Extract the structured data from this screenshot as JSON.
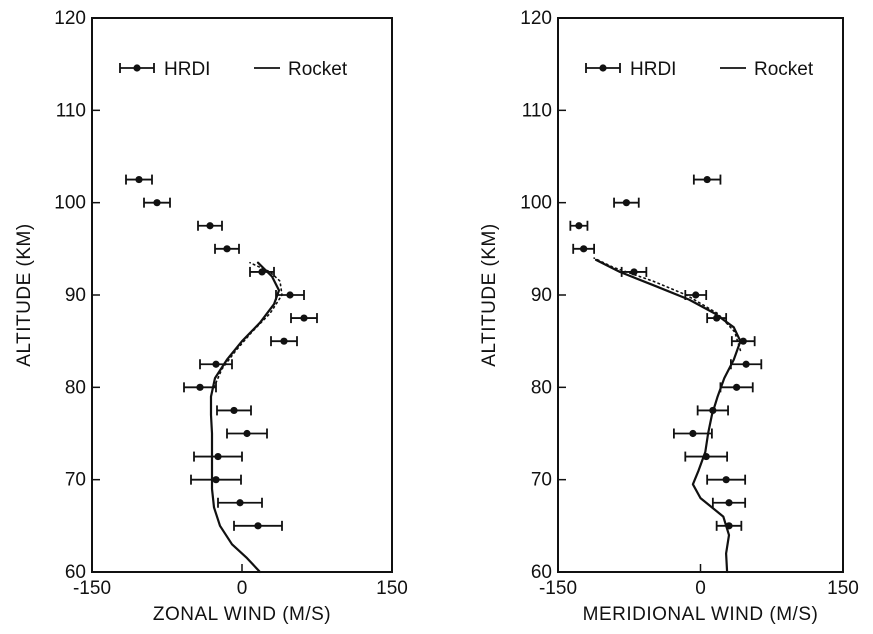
{
  "chart_data": [
    {
      "type": "scatter",
      "title": "",
      "xlabel": "ZONAL WIND (M/S)",
      "ylabel": "ALTITUDE (KM)",
      "xlim": [
        -150,
        150
      ],
      "ylim": [
        60,
        120
      ],
      "x_ticks": [
        -150,
        0,
        150
      ],
      "x_tick_labels": [
        "-150",
        "0",
        "150"
      ],
      "y_ticks": [
        60,
        70,
        80,
        90,
        100,
        110,
        120
      ],
      "y_tick_labels": [
        "60",
        "70",
        "80",
        "90",
        "100",
        "110",
        "120"
      ],
      "legend": {
        "placement": "top",
        "entries": [
          "HRDI",
          "Rocket"
        ]
      },
      "series": [
        {
          "name": "HRDI",
          "kind": "points-with-horizontal-error-bars",
          "points": [
            {
              "y": 102.5,
              "x": -103,
              "err": 13
            },
            {
              "y": 100,
              "x": -85,
              "err": 13
            },
            {
              "y": 97.5,
              "x": -32,
              "err": 12
            },
            {
              "y": 95,
              "x": -15,
              "err": 12
            },
            {
              "y": 92.5,
              "x": 20,
              "err": 12
            },
            {
              "y": 90,
              "x": 48,
              "err": 14
            },
            {
              "y": 87.5,
              "x": 62,
              "err": 13
            },
            {
              "y": 85,
              "x": 42,
              "err": 13
            },
            {
              "y": 82.5,
              "x": -26,
              "err": 16
            },
            {
              "y": 80,
              "x": -42,
              "err": 16
            },
            {
              "y": 77.5,
              "x": -8,
              "err": 17
            },
            {
              "y": 75,
              "x": 5,
              "err": 20
            },
            {
              "y": 72.5,
              "x": -24,
              "err": 24
            },
            {
              "y": 70,
              "x": -26,
              "err": 25
            },
            {
              "y": 67.5,
              "x": -2,
              "err": 22
            },
            {
              "y": 65,
              "x": 16,
              "err": 24
            }
          ]
        },
        {
          "name": "Rocket",
          "kind": "line",
          "points": [
            {
              "y": 60,
              "x": 18
            },
            {
              "y": 61.5,
              "x": 5
            },
            {
              "y": 63,
              "x": -10
            },
            {
              "y": 65,
              "x": -22
            },
            {
              "y": 67,
              "x": -28
            },
            {
              "y": 69,
              "x": -30
            },
            {
              "y": 71,
              "x": -30
            },
            {
              "y": 73,
              "x": -30
            },
            {
              "y": 75,
              "x": -30
            },
            {
              "y": 77,
              "x": -31
            },
            {
              "y": 79,
              "x": -31
            },
            {
              "y": 81,
              "x": -27
            },
            {
              "y": 83,
              "x": -15
            },
            {
              "y": 85,
              "x": 0
            },
            {
              "y": 87,
              "x": 18
            },
            {
              "y": 89,
              "x": 32
            },
            {
              "y": 90.5,
              "x": 37
            },
            {
              "y": 92,
              "x": 30
            },
            {
              "y": 93.5,
              "x": 16
            }
          ]
        },
        {
          "name": "",
          "kind": "dotted-line",
          "points": [
            {
              "y": 80,
              "x": -28
            },
            {
              "y": 82,
              "x": -20
            },
            {
              "y": 84,
              "x": -6
            },
            {
              "y": 86,
              "x": 10
            },
            {
              "y": 88,
              "x": 28
            },
            {
              "y": 90,
              "x": 40
            },
            {
              "y": 91.5,
              "x": 38
            },
            {
              "y": 92.5,
              "x": 28
            },
            {
              "y": 93.5,
              "x": 8
            }
          ]
        }
      ]
    },
    {
      "type": "scatter",
      "title": "",
      "xlabel": "MERIDIONAL WIND (M/S)",
      "ylabel": "ALTITUDE (KM)",
      "xlim": [
        -150,
        150
      ],
      "ylim": [
        60,
        120
      ],
      "x_ticks": [
        -150,
        0,
        150
      ],
      "x_tick_labels": [
        "-150",
        "0",
        "150"
      ],
      "y_ticks": [
        60,
        70,
        80,
        90,
        100,
        110,
        120
      ],
      "y_tick_labels": [
        "60",
        "70",
        "80",
        "90",
        "100",
        "110",
        "120"
      ],
      "legend": {
        "placement": "top",
        "entries": [
          "HRDI",
          "Rocket"
        ]
      },
      "series": [
        {
          "name": "HRDI",
          "kind": "points-with-horizontal-error-bars",
          "points": [
            {
              "y": 102.5,
              "x": 7,
              "err": 14
            },
            {
              "y": 100,
              "x": -78,
              "err": 13
            },
            {
              "y": 97.5,
              "x": -128,
              "err": 9
            },
            {
              "y": 95,
              "x": -123,
              "err": 11
            },
            {
              "y": 92.5,
              "x": -70,
              "err": 13
            },
            {
              "y": 90,
              "x": -5,
              "err": 11
            },
            {
              "y": 87.5,
              "x": 17,
              "err": 10
            },
            {
              "y": 85,
              "x": 45,
              "err": 12
            },
            {
              "y": 82.5,
              "x": 48,
              "err": 16
            },
            {
              "y": 80,
              "x": 38,
              "err": 17
            },
            {
              "y": 77.5,
              "x": 13,
              "err": 16
            },
            {
              "y": 75,
              "x": -8,
              "err": 20
            },
            {
              "y": 72.5,
              "x": 6,
              "err": 22
            },
            {
              "y": 70,
              "x": 27,
              "err": 20
            },
            {
              "y": 67.5,
              "x": 30,
              "err": 17
            },
            {
              "y": 65,
              "x": 30,
              "err": 13
            }
          ]
        },
        {
          "name": "Rocket",
          "kind": "line",
          "points": [
            {
              "y": 60,
              "x": 28
            },
            {
              "y": 62,
              "x": 27
            },
            {
              "y": 64,
              "x": 30
            },
            {
              "y": 66,
              "x": 24
            },
            {
              "y": 68,
              "x": 0
            },
            {
              "y": 69.5,
              "x": -8
            },
            {
              "y": 71,
              "x": -2
            },
            {
              "y": 73,
              "x": 5
            },
            {
              "y": 75,
              "x": 8
            },
            {
              "y": 77,
              "x": 12
            },
            {
              "y": 79,
              "x": 18
            },
            {
              "y": 81,
              "x": 25
            },
            {
              "y": 83,
              "x": 35
            },
            {
              "y": 85,
              "x": 42
            },
            {
              "y": 86.5,
              "x": 35
            },
            {
              "y": 88,
              "x": 15
            },
            {
              "y": 89.5,
              "x": -12
            },
            {
              "y": 91,
              "x": -48
            },
            {
              "y": 92.5,
              "x": -85
            },
            {
              "y": 93.8,
              "x": -110
            }
          ]
        },
        {
          "name": "",
          "kind": "dotted-line",
          "points": [
            {
              "y": 84,
              "x": 42
            },
            {
              "y": 86,
              "x": 36
            },
            {
              "y": 88,
              "x": 18
            },
            {
              "y": 90,
              "x": -15
            },
            {
              "y": 91.5,
              "x": -50
            },
            {
              "y": 93,
              "x": -92
            },
            {
              "y": 94,
              "x": -112
            }
          ]
        }
      ]
    }
  ]
}
